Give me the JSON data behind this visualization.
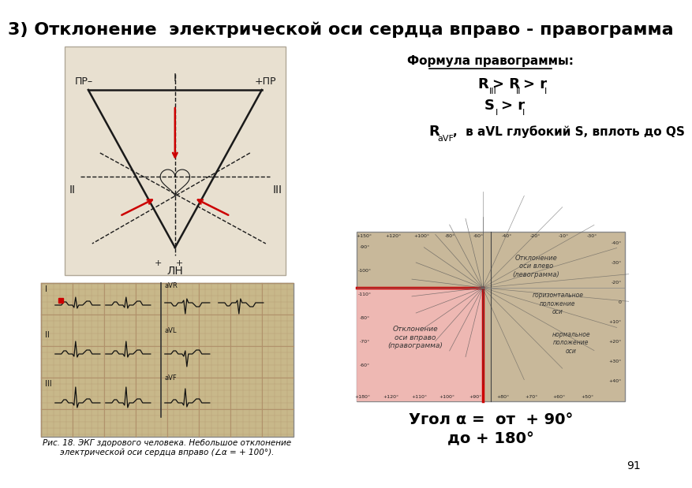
{
  "title": "3) Отклонение  электрической оси сердца вправо - правограмма",
  "title_fontsize": 16,
  "title_fontweight": "bold",
  "bg_color": "#ffffff",
  "formula_title": "Формула правограммы:",
  "angle_text1": "Угол α =  от  + 90°",
  "angle_text2": "до + 180°",
  "page_num": "91",
  "triangle_color": "#1a1a1a",
  "red_color": "#cc0000",
  "pink_color": "#f5b8b8",
  "chart_bg": "#c8b89a"
}
